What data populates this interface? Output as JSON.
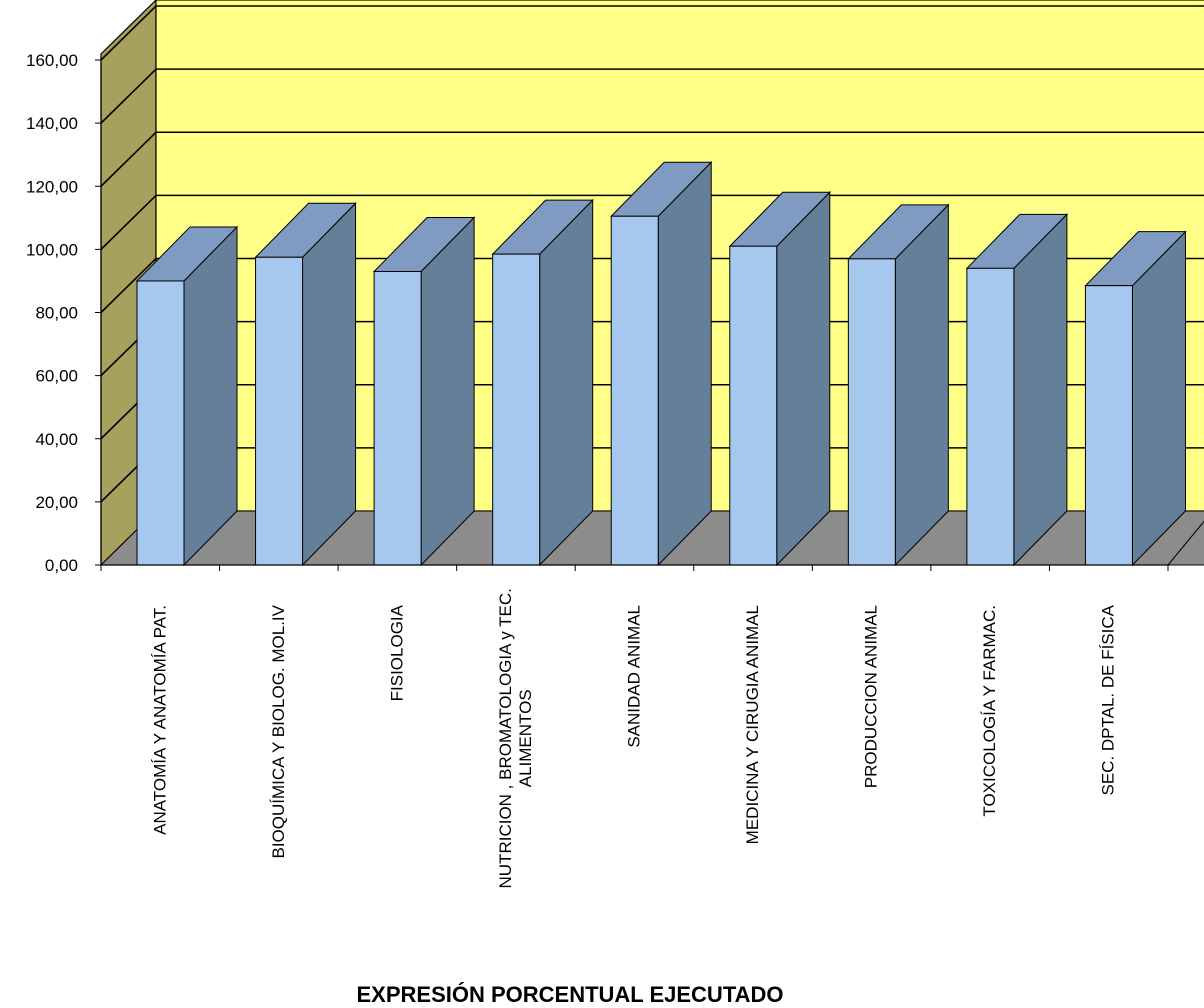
{
  "chart_data": {
    "type": "bar",
    "style": "3d",
    "title": "",
    "xlabel": "EXPRESIÓN PORCENTUAL EJECUTADO",
    "ylabel": "",
    "ylim": [
      0,
      160
    ],
    "y_ticks": [
      "0,00",
      "20,00",
      "40,00",
      "60,00",
      "80,00",
      "100,00",
      "120,00",
      "140,00",
      "160,00"
    ],
    "categories": [
      [
        "ANATOMÍA Y ANATOMÍA PAT."
      ],
      [
        "BIOQUÍMICA Y BIOLOG. MOL.IV"
      ],
      [
        "FISIOLOGIA"
      ],
      [
        "NUTRICION , BROMATOLOGIA y TEC.",
        "ALIMENTOS"
      ],
      [
        "SANIDAD ANIMAL"
      ],
      [
        "MEDICINA Y CIRUGIA ANIMAL"
      ],
      [
        "PRODUCCION ANIMAL"
      ],
      [
        "TOXICOLOGÍA Y FARMAC."
      ],
      [
        "SEC. DPTAL. DE FÍSICA"
      ]
    ],
    "values": [
      90,
      97.5,
      93,
      98.5,
      110.5,
      101,
      97,
      94,
      88.5
    ],
    "grid": true,
    "legend": "none",
    "colors": {
      "back_wall": "#FFFF88",
      "side_wall": "#A6A25E",
      "floor": "#8C8C8C",
      "bar_front": "#A6C8EE",
      "bar_side": "#667F99",
      "bar_top": "#7F9BC2"
    }
  }
}
